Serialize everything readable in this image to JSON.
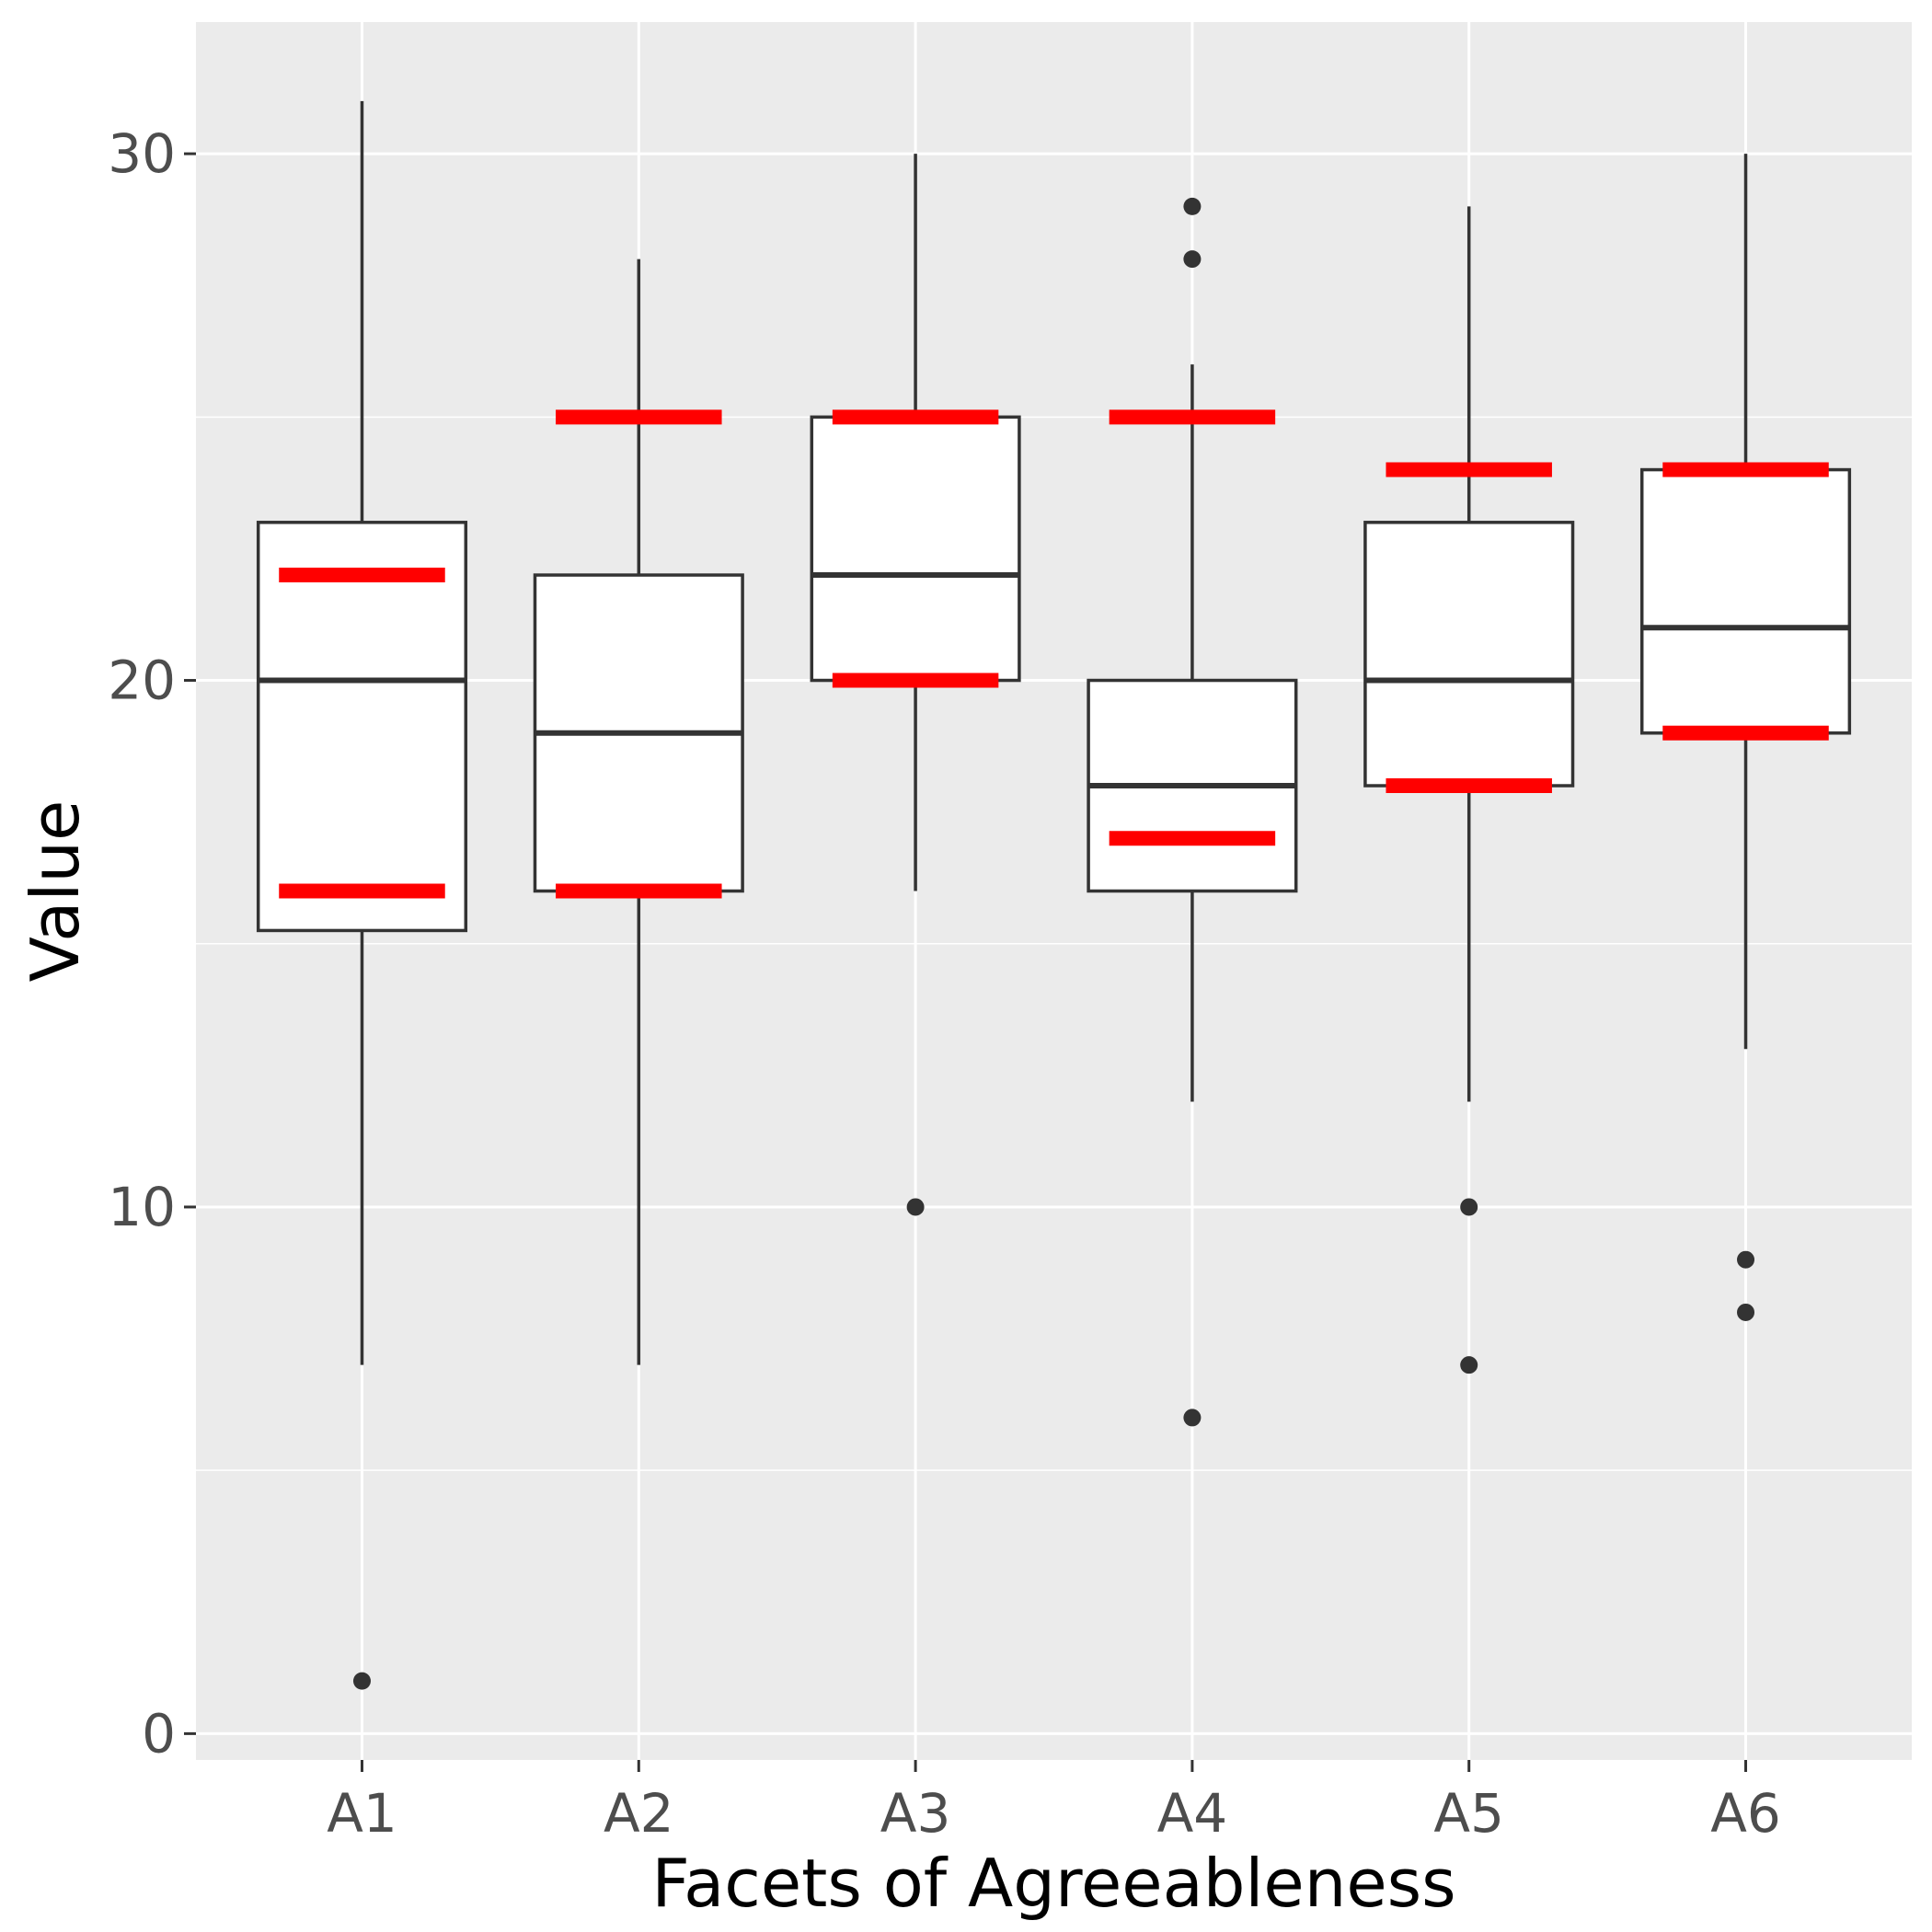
{
  "chart_data": {
    "type": "box",
    "xlabel": "Facets of Agreeableness",
    "ylabel": "Value",
    "ylim": [
      -0.5,
      32.5
    ],
    "y_ticks": [
      0,
      10,
      20,
      30
    ],
    "categories": [
      "A1",
      "A2",
      "A3",
      "A4",
      "A5",
      "A6"
    ],
    "boxes": [
      {
        "category": "A1",
        "whisker_low": 7,
        "q1": 15.25,
        "median": 20,
        "q3": 23,
        "whisker_high": 31,
        "outliers": [
          1
        ]
      },
      {
        "category": "A2",
        "whisker_low": 7,
        "q1": 16,
        "median": 19,
        "q3": 22,
        "whisker_high": 28,
        "outliers": []
      },
      {
        "category": "A3",
        "whisker_low": 16,
        "q1": 20,
        "median": 22,
        "q3": 25,
        "whisker_high": 30,
        "outliers": [
          10
        ]
      },
      {
        "category": "A4",
        "whisker_low": 12,
        "q1": 16,
        "median": 18,
        "q3": 20,
        "whisker_high": 26,
        "outliers": [
          6,
          28,
          29
        ]
      },
      {
        "category": "A5",
        "whisker_low": 12,
        "q1": 18,
        "median": 20,
        "q3": 23,
        "whisker_high": 29,
        "outliers": [
          7,
          10
        ]
      },
      {
        "category": "A6",
        "whisker_low": 13,
        "q1": 19,
        "median": 21,
        "q3": 24,
        "whisker_high": 30,
        "outliers": [
          8,
          9
        ]
      }
    ],
    "red_markers": [
      {
        "category": "A1",
        "values": [
          16,
          22
        ]
      },
      {
        "category": "A2",
        "values": [
          16,
          25
        ]
      },
      {
        "category": "A3",
        "values": [
          20,
          25
        ]
      },
      {
        "category": "A4",
        "values": [
          17,
          25
        ]
      },
      {
        "category": "A5",
        "values": [
          18,
          24
        ]
      },
      {
        "category": "A6",
        "values": [
          19,
          24
        ]
      }
    ],
    "grid": true,
    "colors": {
      "panel_background": "#ebebeb",
      "grid": "#ffffff",
      "box_fill": "#ffffff",
      "box_stroke": "#333333",
      "marker": "#ff0000",
      "outlier": "#333333",
      "tick_text": "#4d4d4d",
      "axis_title": "#000000"
    }
  }
}
